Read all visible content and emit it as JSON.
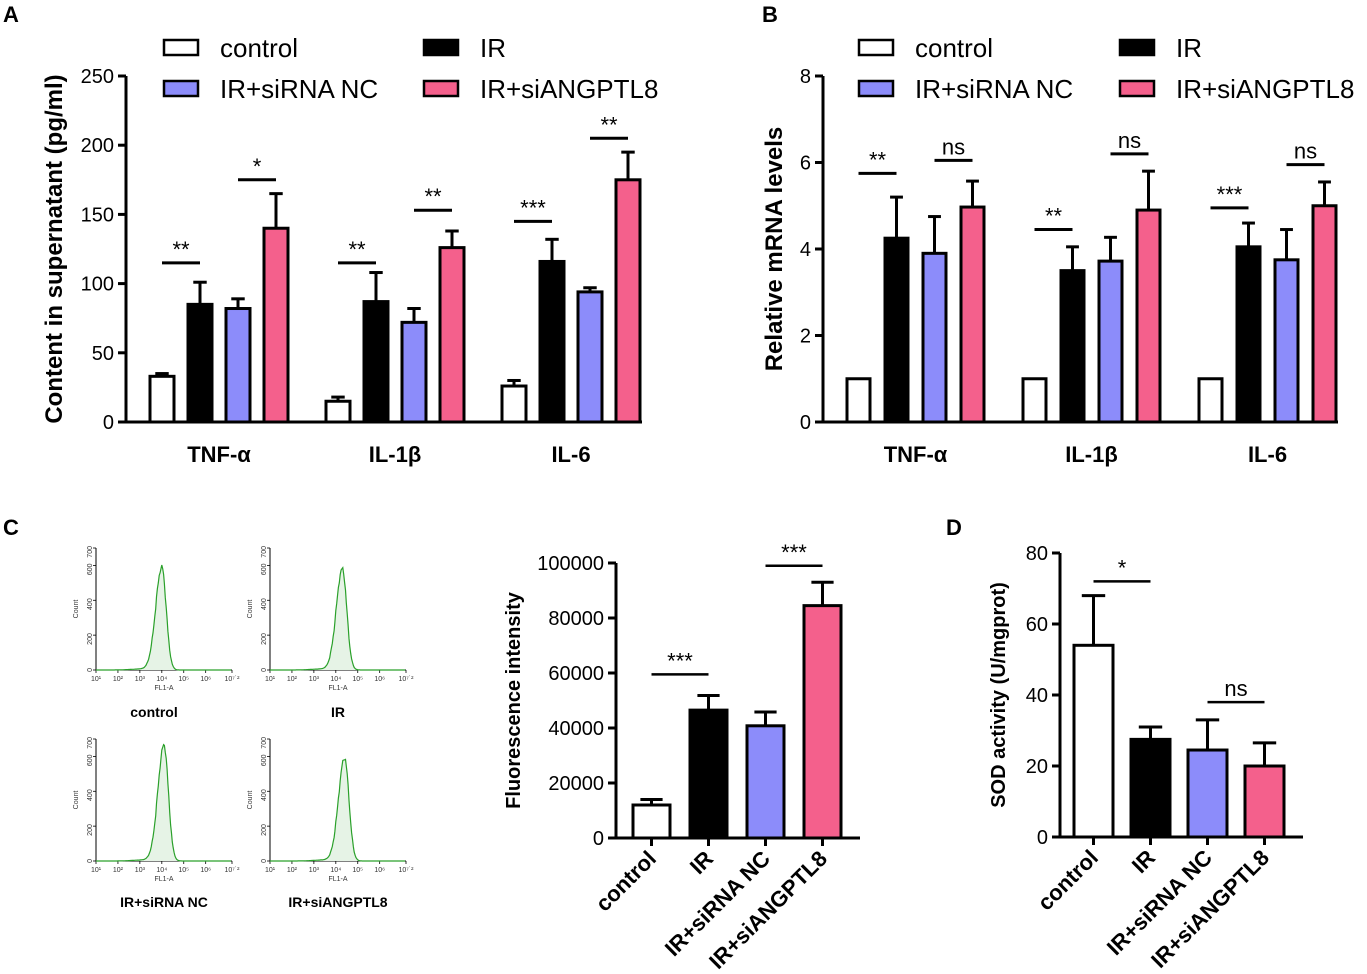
{
  "colors": {
    "control": "#ffffff",
    "IR": "#000000",
    "IR+siRNA NC": "#8c8cfa",
    "IR+siANGPTL8": "#f4608c",
    "histogram": "#2aa02a",
    "histogram_fill": "#e6f3e6"
  },
  "chart_data": [
    {
      "panel": "A",
      "type": "bar",
      "ylabel": "Content in supernatant (pg/ml)",
      "ylim": [
        0,
        250
      ],
      "yticks": [
        0,
        50,
        100,
        150,
        200,
        250
      ],
      "categories": [
        "TNF-α",
        "IL-1β",
        "IL-6"
      ],
      "legend": [
        "control",
        "IR",
        "IR+siRNA NC",
        "IR+siANGPTL8"
      ],
      "series": [
        {
          "name": "control",
          "values": [
            33,
            15,
            26
          ],
          "errors": [
            2,
            3,
            4
          ]
        },
        {
          "name": "IR",
          "values": [
            85,
            87,
            116
          ],
          "errors": [
            16,
            21,
            16
          ]
        },
        {
          "name": "IR+siRNA NC",
          "values": [
            82,
            72,
            94
          ],
          "errors": [
            7,
            10,
            3
          ]
        },
        {
          "name": "IR+siANGPTL8",
          "values": [
            140,
            126,
            175
          ],
          "errors": [
            25,
            12,
            20
          ]
        }
      ],
      "significance": [
        {
          "category": 0,
          "pair": [
            0,
            1
          ],
          "y": 115,
          "label": "**"
        },
        {
          "category": 0,
          "pair": [
            2,
            3
          ],
          "y": 175,
          "label": "*"
        },
        {
          "category": 1,
          "pair": [
            0,
            1
          ],
          "y": 115,
          "label": "**"
        },
        {
          "category": 1,
          "pair": [
            2,
            3
          ],
          "y": 153,
          "label": "**"
        },
        {
          "category": 2,
          "pair": [
            0,
            1
          ],
          "y": 145,
          "label": "***"
        },
        {
          "category": 2,
          "pair": [
            2,
            3
          ],
          "y": 205,
          "label": "**"
        }
      ]
    },
    {
      "panel": "B",
      "type": "bar",
      "ylabel": "Relative mRNA levels",
      "ylim": [
        0,
        8
      ],
      "yticks": [
        0,
        2,
        4,
        6,
        8
      ],
      "categories": [
        "TNF-α",
        "IL-1β",
        "IL-6"
      ],
      "legend": [
        "control",
        "IR",
        "IR+siRNA NC",
        "IR+siANGPTL8"
      ],
      "series": [
        {
          "name": "control",
          "values": [
            1.0,
            1.0,
            1.0
          ],
          "errors": [
            0,
            0,
            0
          ]
        },
        {
          "name": "IR",
          "values": [
            4.25,
            3.5,
            4.05
          ],
          "errors": [
            0.95,
            0.55,
            0.55
          ]
        },
        {
          "name": "IR+siRNA NC",
          "values": [
            3.9,
            3.72,
            3.75
          ],
          "errors": [
            0.85,
            0.55,
            0.7
          ]
        },
        {
          "name": "IR+siANGPTL8",
          "values": [
            4.97,
            4.9,
            5.0
          ],
          "errors": [
            0.6,
            0.9,
            0.55
          ]
        }
      ],
      "significance": [
        {
          "category": 0,
          "pair": [
            0,
            1
          ],
          "y": 5.75,
          "label": "**"
        },
        {
          "category": 0,
          "pair": [
            2,
            3
          ],
          "y": 6.05,
          "label": "ns"
        },
        {
          "category": 1,
          "pair": [
            0,
            1
          ],
          "y": 4.45,
          "label": "**"
        },
        {
          "category": 1,
          "pair": [
            2,
            3
          ],
          "y": 6.2,
          "label": "ns"
        },
        {
          "category": 2,
          "pair": [
            0,
            1
          ],
          "y": 4.95,
          "label": "***"
        },
        {
          "category": 2,
          "pair": [
            2,
            3
          ],
          "y": 5.95,
          "label": "ns"
        }
      ]
    },
    {
      "panel": "C",
      "type": "bar",
      "ylabel": "Fluorescence intensity",
      "ylim": [
        0,
        100000
      ],
      "yticks": [
        0,
        20000,
        40000,
        60000,
        80000,
        100000
      ],
      "categories": [
        "control",
        "IR",
        "IR+siRNA NC",
        "IR+siANGPTL8"
      ],
      "values": [
        12000,
        46500,
        40800,
        84500
      ],
      "errors": [
        2000,
        5300,
        5000,
        8500
      ],
      "significance": [
        {
          "pair": [
            0,
            1
          ],
          "y": 59500,
          "label": "***"
        },
        {
          "pair": [
            2,
            3
          ],
          "y": 99000,
          "label": "***"
        }
      ]
    },
    {
      "panel": "D",
      "type": "bar",
      "ylabel": "SOD activity (U/mgprot)",
      "ylim": [
        0,
        80
      ],
      "yticks": [
        0,
        20,
        40,
        60,
        80
      ],
      "categories": [
        "control",
        "IR",
        "IR+siRNA NC",
        "IR+siANGPTL8"
      ],
      "values": [
        54,
        27.5,
        24.5,
        20
      ],
      "errors": [
        14,
        3.5,
        8.5,
        6.5
      ],
      "significance": [
        {
          "pair": [
            0,
            1
          ],
          "y": 72,
          "label": "*"
        },
        {
          "pair": [
            2,
            3
          ],
          "y": 38,
          "label": "ns"
        }
      ]
    },
    {
      "panel": "C-histograms",
      "type": "histogram",
      "xlabel": "FL1-A",
      "ylabel": "Count",
      "xticks": [
        "10¹",
        "10²",
        "10³",
        "10⁴",
        "10⁵",
        "10⁶",
        "10⁷˙²"
      ],
      "yticks": [
        "0",
        "200",
        "400",
        "600",
        "700"
      ],
      "samples": [
        {
          "label": "control",
          "peak_decade": 4.0,
          "peak_count": 590
        },
        {
          "label": "IR",
          "peak_decade": 4.3,
          "peak_count": 580
        },
        {
          "label": "IR+siRNA NC",
          "peak_decade": 4.1,
          "peak_count": 665
        },
        {
          "label": "IR+siANGPTL8",
          "peak_decade": 4.4,
          "peak_count": 590
        }
      ]
    }
  ],
  "panel_labels": [
    "A",
    "B",
    "C",
    "D"
  ]
}
